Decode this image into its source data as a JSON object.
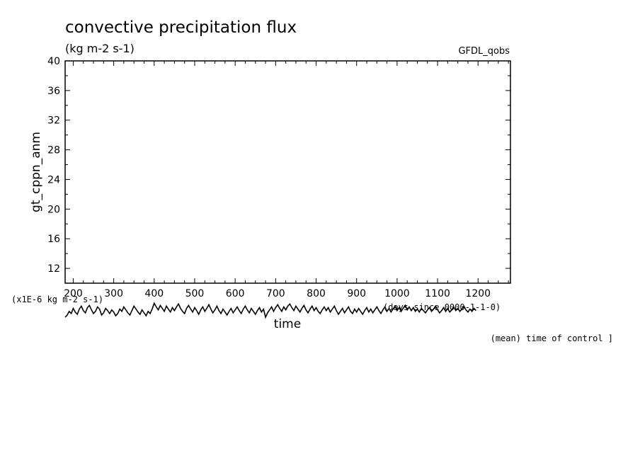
{
  "chart_data": {
    "type": "line",
    "title": "convective precipitation flux",
    "units": "(kg m-2 s-1)",
    "source": "GFDL_qobs",
    "ylabel": "gt_cppn_anm",
    "xlabel": "time",
    "x_units_note": "(days since 0000-1-1-0)",
    "y_scale_note": "(x1E-6 kg m-2 s-1)",
    "overlay_note": "(mean) time of control ]",
    "xlim": [
      180,
      1280
    ],
    "ylim": [
      10,
      40
    ],
    "x_ticks": [
      200,
      300,
      400,
      500,
      600,
      700,
      800,
      900,
      1000,
      1100,
      1200
    ],
    "y_ticks": [
      12,
      16,
      20,
      24,
      28,
      32,
      36,
      40
    ],
    "series": [
      {
        "color": "#000000",
        "x_start": 180,
        "x_step": 5,
        "values": [
          5.4,
          5.7,
          6.2,
          5.9,
          6.6,
          6.1,
          5.8,
          6.5,
          6.9,
          6.3,
          6.0,
          6.7,
          7.0,
          6.4,
          5.9,
          6.2,
          6.8,
          6.5,
          5.7,
          6.0,
          6.6,
          6.3,
          5.9,
          6.4,
          6.1,
          5.6,
          5.9,
          6.5,
          6.2,
          6.8,
          6.4,
          6.0,
          5.7,
          6.3,
          6.9,
          6.5,
          6.1,
          5.8,
          6.4,
          6.0,
          5.6,
          6.2,
          5.9,
          6.5,
          7.3,
          6.8,
          6.4,
          7.0,
          6.6,
          6.2,
          6.9,
          6.5,
          6.1,
          6.7,
          6.3,
          6.8,
          7.2,
          6.6,
          6.2,
          5.9,
          6.6,
          7.0,
          6.5,
          6.1,
          6.7,
          6.3,
          5.8,
          6.4,
          6.8,
          6.2,
          6.6,
          7.1,
          6.5,
          6.0,
          6.4,
          6.9,
          6.3,
          5.9,
          6.5,
          6.1,
          5.7,
          6.2,
          6.6,
          6.0,
          6.4,
          6.8,
          6.3,
          5.9,
          6.5,
          6.9,
          6.4,
          6.0,
          6.6,
          6.2,
          5.8,
          6.3,
          6.7,
          6.1,
          6.5,
          5.4,
          6.0,
          6.4,
          6.8,
          6.2,
          6.7,
          7.1,
          6.6,
          6.2,
          6.8,
          6.4,
          6.9,
          7.2,
          6.7,
          6.3,
          6.9,
          6.5,
          6.1,
          6.6,
          7.0,
          6.4,
          6.0,
          6.5,
          6.9,
          6.3,
          6.7,
          6.2,
          5.9,
          6.4,
          6.8,
          6.3,
          6.7,
          6.1,
          6.5,
          6.9,
          6.3,
          5.8,
          6.2,
          6.6,
          6.0,
          6.4,
          6.8,
          6.2,
          5.9,
          6.5,
          6.1,
          6.6,
          6.2,
          5.8,
          6.3,
          6.7,
          6.1,
          6.5,
          6.0,
          6.4,
          6.8,
          6.3,
          5.9,
          6.4,
          6.8,
          6.2,
          6.6,
          6.1,
          6.5,
          6.9,
          6.3,
          6.7,
          6.2,
          6.6,
          7.0,
          6.4,
          6.8,
          6.3,
          6.7,
          6.2,
          6.5,
          6.1,
          6.6,
          6.3,
          6.0,
          6.4,
          6.7,
          6.2,
          6.5,
          6.9,
          6.4,
          6.0,
          6.3,
          6.7,
          6.2,
          6.6,
          6.1,
          6.4,
          6.8,
          6.3,
          6.6,
          6.2,
          6.5,
          6.9,
          6.4,
          6.1,
          6.5,
          6.2,
          6.6,
          6.3
        ]
      }
    ]
  }
}
